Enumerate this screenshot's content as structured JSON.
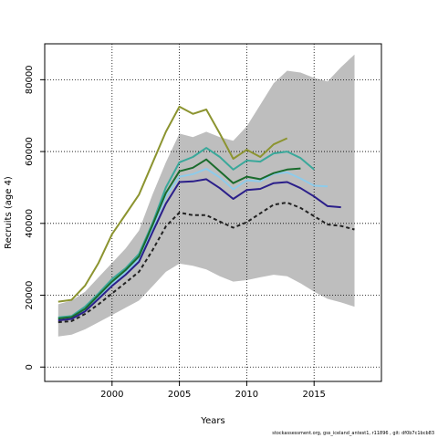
{
  "chart_data": {
    "type": "line",
    "xlabel": "Years",
    "ylabel": "Recruits (age 4)",
    "xlim": [
      1995,
      2020
    ],
    "ylim": [
      -4000,
      90000
    ],
    "xticks": [
      2000,
      2005,
      2010,
      2015
    ],
    "yticks": [
      0,
      20000,
      40000,
      60000,
      80000
    ],
    "grid": true,
    "grid_style": "dotted",
    "band": {
      "x": [
        1996,
        1997,
        1998,
        1999,
        2000,
        2001,
        2002,
        2003,
        2004,
        2005,
        2006,
        2007,
        2008,
        2009,
        2010,
        2011,
        2012,
        2013,
        2014,
        2015,
        2016,
        2017,
        2018
      ],
      "lower": [
        8500,
        9000,
        10500,
        12500,
        14500,
        16500,
        18500,
        22500,
        26500,
        28800,
        28200,
        27200,
        25300,
        23800,
        24200,
        25000,
        25700,
        25300,
        23300,
        21000,
        19000,
        18000,
        16800
      ],
      "upper": [
        17500,
        18500,
        21000,
        25000,
        29000,
        33000,
        38000,
        48000,
        57000,
        65000,
        64000,
        65500,
        64000,
        63000,
        67000,
        73000,
        79000,
        82500,
        82000,
        80500,
        79500,
        83500,
        87000
      ],
      "color": "#bebebe"
    },
    "series": [
      {
        "color": "#8c9430",
        "dash": "",
        "x": [
          1996,
          1997,
          1998,
          1999,
          2000,
          2001,
          2002,
          2003,
          2004,
          2005,
          2006,
          2007,
          2008,
          2009,
          2010,
          2011,
          2012,
          2013
        ],
        "values": [
          18200,
          18700,
          22700,
          29000,
          37000,
          42500,
          48000,
          56800,
          65500,
          72500,
          70500,
          71700,
          65000,
          58000,
          60500,
          58500,
          62000,
          63700
        ]
      },
      {
        "color": "#3aa89a",
        "dash": "",
        "x": [
          1996,
          1997,
          1998,
          1999,
          2000,
          2001,
          2002,
          2003,
          2004,
          2005,
          2006,
          2007,
          2008,
          2009,
          2010,
          2011,
          2012,
          2013,
          2014,
          2015
        ],
        "values": [
          13800,
          14200,
          16800,
          20500,
          24500,
          27500,
          31500,
          40000,
          50000,
          57000,
          58500,
          61000,
          58500,
          55000,
          57500,
          57200,
          59500,
          60000,
          58200,
          55000
        ]
      },
      {
        "color": "#8ecbea",
        "dash": "",
        "x": [
          1996,
          1997,
          1998,
          1999,
          2000,
          2001,
          2002,
          2003,
          2004,
          2005,
          2006,
          2007,
          2008,
          2009,
          2010,
          2011,
          2012,
          2013,
          2014,
          2015,
          2016
        ],
        "values": [
          13200,
          13600,
          15800,
          19500,
          23200,
          26300,
          30000,
          38500,
          47500,
          53000,
          53700,
          55200,
          52800,
          49500,
          52000,
          51700,
          53800,
          54200,
          52500,
          50500,
          50300
        ]
      },
      {
        "color": "#1a6b2c",
        "dash": "",
        "x": [
          1996,
          1997,
          1998,
          1999,
          2000,
          2001,
          2002,
          2003,
          2004,
          2005,
          2006,
          2007,
          2008,
          2009,
          2010,
          2011,
          2012,
          2013,
          2014
        ],
        "values": [
          13500,
          13900,
          16200,
          20000,
          23800,
          27000,
          30800,
          39500,
          48500,
          54500,
          55500,
          57800,
          54500,
          51200,
          53000,
          52300,
          54000,
          55000,
          55300
        ]
      },
      {
        "color": "#2b1f8a",
        "dash": "",
        "x": [
          1996,
          1997,
          1998,
          1999,
          2000,
          2001,
          2002,
          2003,
          2004,
          2005,
          2006,
          2007,
          2008,
          2009,
          2010,
          2011,
          2012,
          2013,
          2014,
          2015,
          2016,
          2017
        ],
        "values": [
          13000,
          13400,
          15500,
          19000,
          22600,
          25700,
          29300,
          37500,
          45500,
          51500,
          51700,
          52300,
          49800,
          46800,
          49300,
          49600,
          51200,
          51500,
          49800,
          47500,
          44800,
          44500
        ]
      },
      {
        "color": "#222222",
        "dash": "4,3",
        "x": [
          1996,
          1997,
          1998,
          1999,
          2000,
          2001,
          2002,
          2003,
          2004,
          2005,
          2006,
          2007,
          2008,
          2009,
          2010,
          2011,
          2012,
          2013,
          2014,
          2015,
          2016,
          2017,
          2018
        ],
        "values": [
          12500,
          12800,
          14800,
          17500,
          20500,
          23500,
          26500,
          32500,
          39200,
          43000,
          42300,
          42300,
          40500,
          38800,
          40300,
          42800,
          45200,
          45800,
          44300,
          42000,
          39700,
          39300,
          38300
        ]
      }
    ]
  },
  "footer": "stockassessment.org, gss_iceland_antest1, r11896 , git: df0b7c1bcb83"
}
